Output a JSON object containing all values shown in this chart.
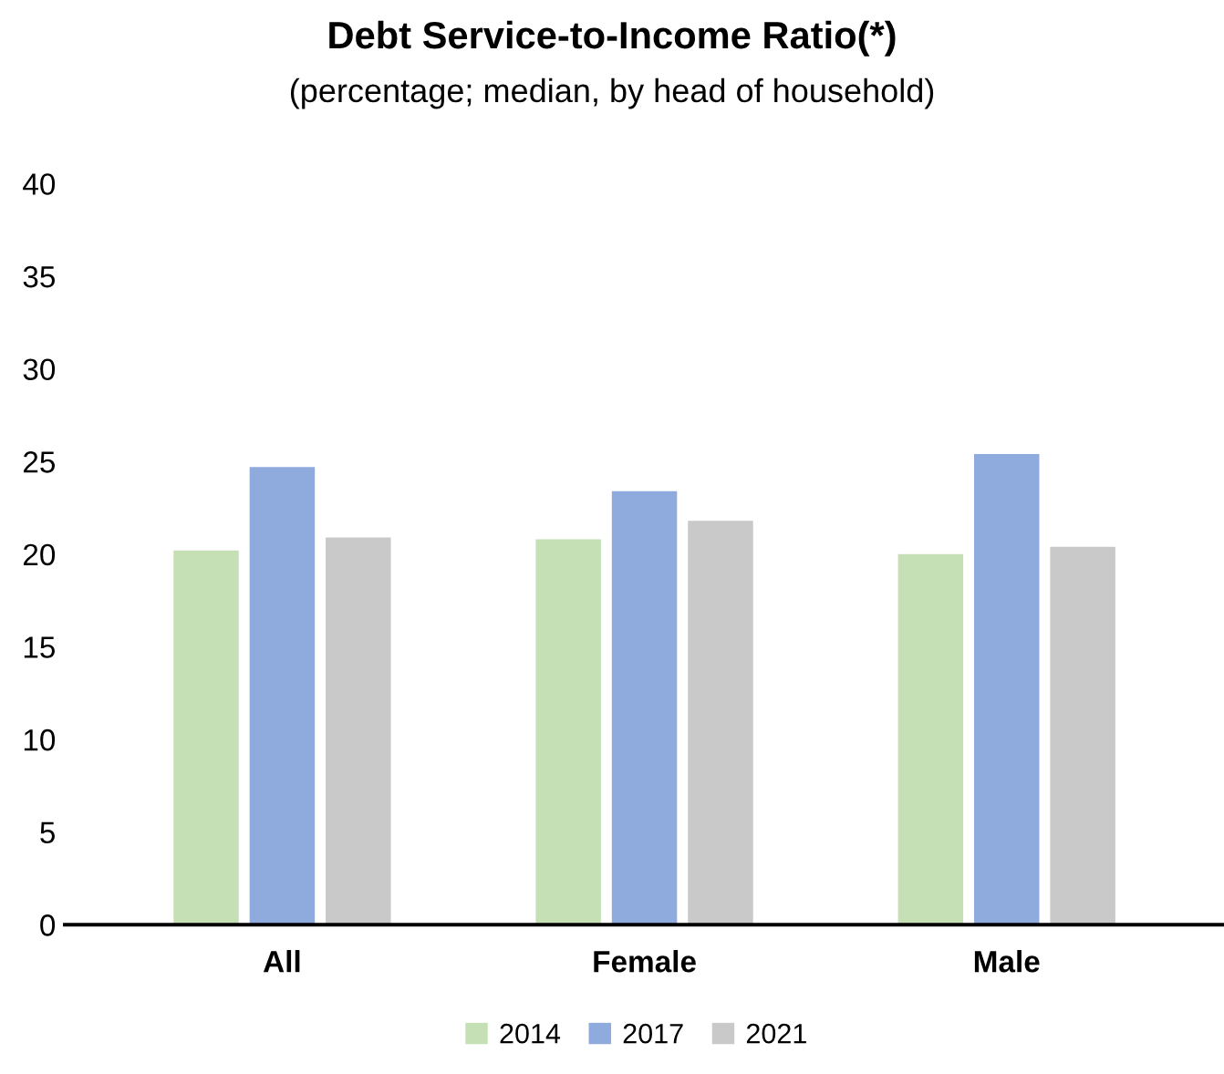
{
  "chart_data": {
    "type": "bar",
    "title": "Debt Service-to-Income Ratio(*)",
    "subtitle": "(percentage; median, by head of household)",
    "categories": [
      "All",
      "Female",
      "Male"
    ],
    "series": [
      {
        "name": "2014",
        "color": "#c5e0b4",
        "values": [
          20.2,
          20.8,
          20.0
        ]
      },
      {
        "name": "2017",
        "color": "#8faadc",
        "values": [
          24.7,
          23.4,
          25.4
        ]
      },
      {
        "name": "2021",
        "color": "#c9c9c9",
        "values": [
          20.9,
          21.8,
          20.4
        ]
      }
    ],
    "ylim": [
      0,
      40
    ],
    "yticks": [
      0,
      5,
      10,
      15,
      20,
      25,
      30,
      35,
      40
    ],
    "grid": false,
    "legend": "bottom"
  }
}
